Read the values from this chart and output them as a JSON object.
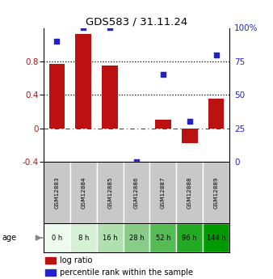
{
  "title": "GDS583 / 31.11.24",
  "samples": [
    "GSM12883",
    "GSM12884",
    "GSM12885",
    "GSM12886",
    "GSM12887",
    "GSM12888",
    "GSM12889"
  ],
  "ages": [
    "0 h",
    "8 h",
    "16 h",
    "28 h",
    "52 h",
    "96 h",
    "144 h"
  ],
  "log_ratio": [
    0.77,
    1.13,
    0.75,
    0.0,
    0.1,
    -0.18,
    0.35
  ],
  "percentile_rank": [
    90,
    100,
    100,
    0,
    65,
    30,
    80
  ],
  "bar_color": "#bb1111",
  "dot_color": "#2222cc",
  "ylim_left": [
    -0.4,
    1.2
  ],
  "ylim_right": [
    0,
    100
  ],
  "yticks_left": [
    -0.4,
    0.0,
    0.4,
    0.8
  ],
  "ytick_labels_left": [
    "-0.4",
    "0",
    "0.4",
    "0.8"
  ],
  "yticks_right": [
    0,
    25,
    50,
    75,
    100
  ],
  "ytick_labels_right": [
    "0",
    "25",
    "50",
    "75",
    "100%"
  ],
  "hlines": [
    0.4,
    0.8
  ],
  "age_colors": [
    "#edfaed",
    "#d5f0d5",
    "#b0e0b0",
    "#88cc88",
    "#55bb55",
    "#22aa22",
    "#009900"
  ],
  "gsm_color": "#c8c8c8",
  "legend_log_ratio": "log ratio",
  "legend_percentile": "percentile rank within the sample",
  "age_label": "age"
}
